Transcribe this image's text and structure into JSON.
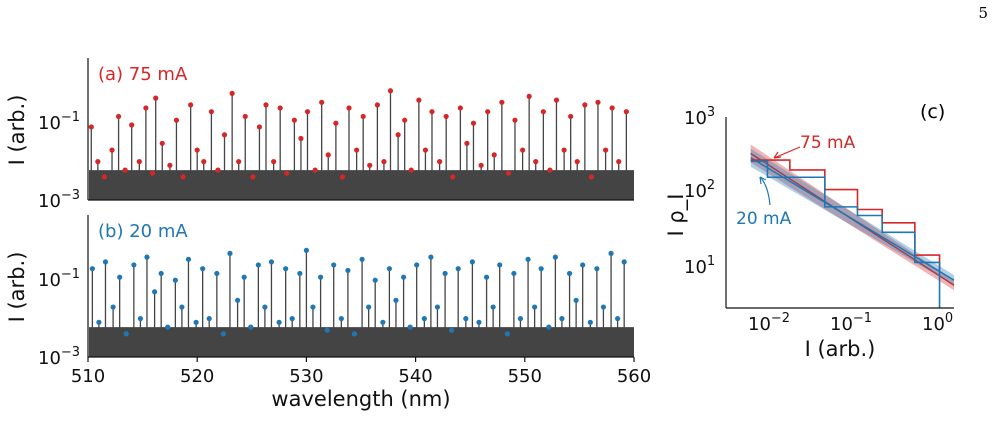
{
  "page_number": "5",
  "chart_data": [
    {
      "type": "line",
      "panel_label": "(a) 75 mA",
      "color": "#d62728",
      "bars_color": "#444444",
      "xlabel": "",
      "ylabel": "I (arb.)",
      "xlim": [
        510,
        560
      ],
      "ylim": [
        0.001,
        5
      ],
      "yscale": "log",
      "yticks": [
        "10^-3",
        "10^-1"
      ],
      "series": [
        {
          "x": [
            510.3,
            510.9,
            511.5,
            512.2,
            512.8,
            513.4,
            514.0,
            514.7,
            515.3,
            515.9,
            516.2,
            516.8,
            517.5,
            518.1,
            518.7,
            519.4,
            520.0,
            520.6,
            521.3,
            521.9,
            522.5,
            523.2,
            523.8,
            524.4,
            525.1,
            525.7,
            526.3,
            527.0,
            527.6,
            528.2,
            528.9,
            529.5,
            530.1,
            530.8,
            531.4,
            532.0,
            532.7,
            533.3,
            533.9,
            534.6,
            535.2,
            535.8,
            536.5,
            537.1,
            537.7,
            538.4,
            539.0,
            539.6,
            540.3,
            540.9,
            541.5,
            542.2,
            542.8,
            543.4,
            544.1,
            544.7,
            545.3,
            546.0,
            546.6,
            547.2,
            547.9,
            548.5,
            549.1,
            549.8,
            550.4,
            551.0,
            551.7,
            552.3,
            552.9,
            553.6,
            554.2,
            554.8,
            555.5,
            556.1,
            556.7,
            557.4,
            558.0,
            558.6,
            559.3
          ],
          "y": [
            0.08,
            0.01,
            0.004,
            0.02,
            0.15,
            0.006,
            0.09,
            0.01,
            0.25,
            0.005,
            0.45,
            0.03,
            0.008,
            0.12,
            0.004,
            0.3,
            0.02,
            0.01,
            0.2,
            0.006,
            0.05,
            0.6,
            0.01,
            0.15,
            0.004,
            0.08,
            0.3,
            0.01,
            0.25,
            0.005,
            0.12,
            0.04,
            0.2,
            0.006,
            0.35,
            0.015,
            0.1,
            0.004,
            0.25,
            0.02,
            0.15,
            0.008,
            0.3,
            0.01,
            0.7,
            0.05,
            0.12,
            0.006,
            0.4,
            0.02,
            0.2,
            0.01,
            0.15,
            0.004,
            0.25,
            0.03,
            0.1,
            0.008,
            0.2,
            0.015,
            0.35,
            0.005,
            0.12,
            0.02,
            0.5,
            0.01,
            0.2,
            0.006,
            0.4,
            0.02,
            0.15,
            0.01,
            0.3,
            0.004,
            0.35,
            0.02,
            0.25,
            0.01,
            0.2
          ]
        }
      ]
    },
    {
      "type": "line",
      "panel_label": "(b) 20 mA",
      "color": "#1f77b4",
      "bars_color": "#444444",
      "xlabel": "wavelength (nm)",
      "ylabel": "I (arb.)",
      "xlim": [
        510,
        560
      ],
      "ylim": [
        0.001,
        5
      ],
      "yscale": "log",
      "xticks": [
        510,
        520,
        530,
        540,
        550,
        560
      ],
      "yticks": [
        "10^-3",
        "10^-1"
      ],
      "series": [
        {
          "x": [
            510.4,
            511.0,
            511.6,
            512.3,
            512.9,
            513.5,
            514.2,
            514.8,
            515.4,
            516.1,
            516.7,
            517.3,
            518.0,
            518.6,
            519.2,
            519.9,
            520.5,
            521.1,
            521.8,
            522.4,
            523.0,
            523.7,
            524.3,
            524.9,
            525.6,
            526.2,
            526.8,
            527.5,
            528.1,
            528.7,
            529.4,
            530.0,
            530.6,
            531.3,
            531.9,
            532.5,
            533.2,
            533.8,
            534.4,
            535.1,
            535.7,
            536.3,
            537.0,
            537.6,
            538.2,
            538.9,
            539.5,
            540.1,
            540.8,
            541.4,
            542.0,
            542.7,
            543.3,
            543.9,
            544.6,
            545.2,
            545.8,
            546.5,
            547.1,
            547.7,
            548.4,
            549.0,
            549.6,
            550.3,
            550.9,
            551.5,
            552.2,
            552.8,
            553.4,
            554.1,
            554.7,
            555.3,
            556.0,
            556.6,
            557.2,
            557.9,
            558.5,
            559.1
          ],
          "y": [
            0.2,
            0.008,
            0.3,
            0.02,
            0.12,
            0.004,
            0.25,
            0.01,
            0.4,
            0.05,
            0.15,
            0.006,
            0.1,
            0.02,
            0.35,
            0.008,
            0.2,
            0.01,
            0.15,
            0.004,
            0.5,
            0.03,
            0.12,
            0.006,
            0.25,
            0.02,
            0.3,
            0.008,
            0.2,
            0.01,
            0.15,
            0.6,
            0.02,
            0.12,
            0.005,
            0.25,
            0.01,
            0.18,
            0.004,
            0.35,
            0.02,
            0.1,
            0.008,
            0.2,
            0.03,
            0.12,
            0.006,
            0.25,
            0.01,
            0.4,
            0.02,
            0.15,
            0.005,
            0.2,
            0.01,
            0.3,
            0.008,
            0.12,
            0.02,
            0.25,
            0.004,
            0.15,
            0.01,
            0.35,
            0.02,
            0.2,
            0.006,
            0.4,
            0.01,
            0.15,
            0.03,
            0.25,
            0.008,
            0.2,
            0.02,
            0.5,
            0.01,
            0.3
          ]
        }
      ]
    },
    {
      "type": "line",
      "panel_label": "(c)",
      "xlabel": "I (arb.)",
      "ylabel": "I ρ_I",
      "xscale": "log",
      "yscale": "log",
      "xlim": [
        0.0025,
        1.5
      ],
      "ylim": [
        3,
        1000
      ],
      "xticks": [
        "10^-2",
        "10^-1",
        "10^0"
      ],
      "yticks": [
        "10^1",
        "10^2",
        "10^3"
      ],
      "series": [
        {
          "name": "75 mA",
          "color": "#d62728",
          "step_edges": [
            0.005,
            0.015,
            0.04,
            0.1,
            0.2,
            0.5,
            1.0
          ],
          "step_values": [
            270,
            200,
            110,
            60,
            40,
            15,
            9
          ],
          "fit_from": [
            0.005,
            330
          ],
          "fit_to": [
            1.5,
            6
          ]
        },
        {
          "name": "20 mA",
          "color": "#1f77b4",
          "step_edges": [
            0.005,
            0.008,
            0.04,
            0.1,
            0.2,
            0.5,
            1.0
          ],
          "step_values": [
            260,
            160,
            65,
            50,
            30,
            12,
            3
          ],
          "fit_from": [
            0.005,
            290
          ],
          "fit_to": [
            1.5,
            7
          ]
        }
      ]
    }
  ]
}
